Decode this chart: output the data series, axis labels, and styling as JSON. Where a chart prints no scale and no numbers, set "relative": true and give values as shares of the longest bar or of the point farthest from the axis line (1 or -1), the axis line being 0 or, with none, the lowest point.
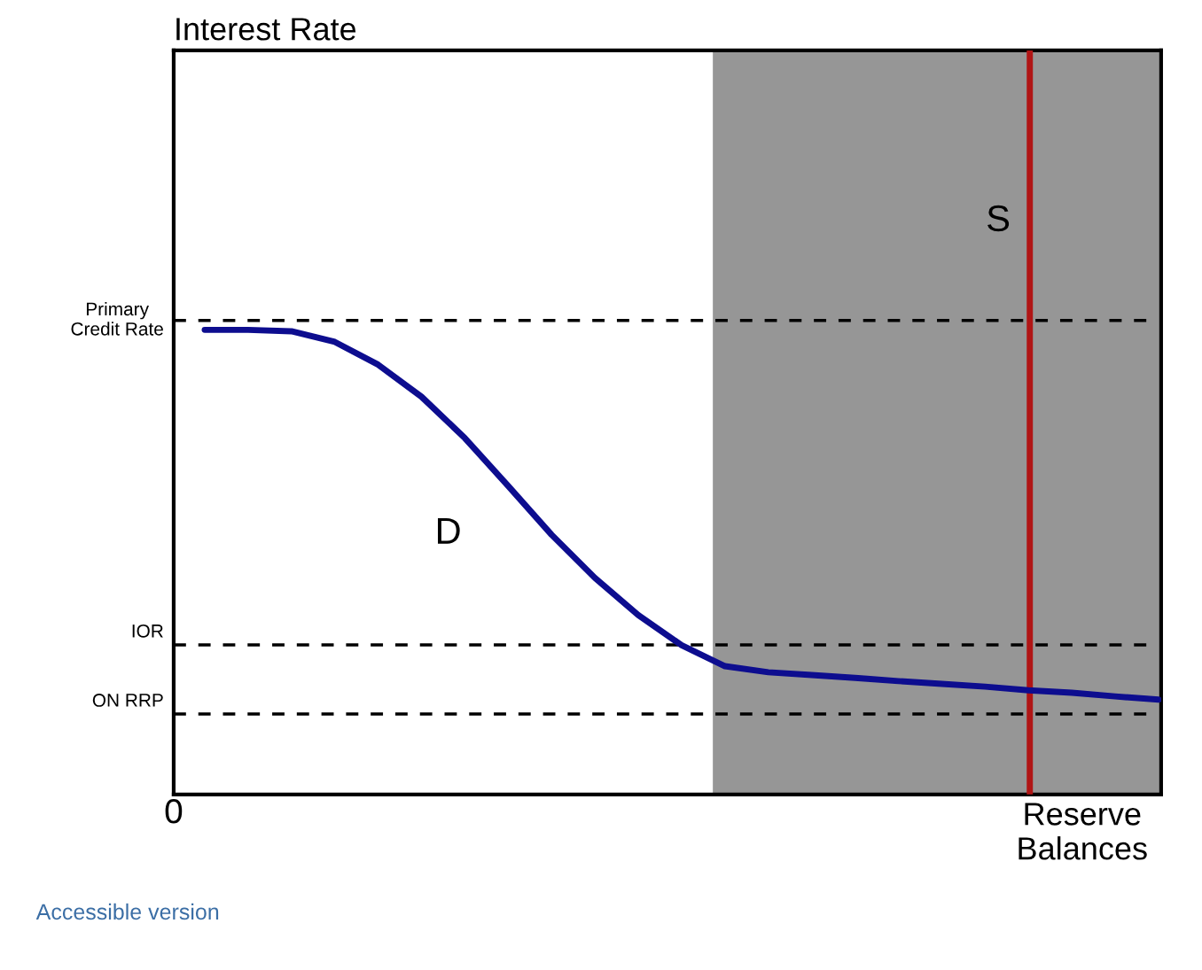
{
  "chart_data": {
    "type": "line",
    "relative": true,
    "xlabel": "Reserve\nBalances",
    "categories": [
      null,
      null,
      null,
      null,
      null,
      null,
      null,
      null,
      null,
      null,
      null,
      null,
      null,
      null,
      null,
      null,
      null,
      null,
      null,
      null,
      null,
      null,
      null
    ],
    "series": [
      {
        "color": "#0d0d8f",
        "values": [
          1.0,
          1.0,
          0.997,
          0.974,
          0.925,
          0.856,
          0.767,
          0.664,
          0.559,
          0.466,
          0.386,
          0.321,
          0.276,
          0.263,
          0.257,
          0.251,
          0.244,
          0.238,
          0.232,
          0.224,
          0.219,
          0.211,
          0.204
        ]
      }
    ],
    "ref_lines": [
      {
        "axis": "y",
        "value": 1.02,
        "label": "Primary\nCredit Rate",
        "color": "#000000",
        "line_style": "dashed"
      },
      {
        "axis": "y",
        "value": 0.322,
        "label": "IOR",
        "color": "#000000",
        "line_style": "dashed"
      },
      {
        "axis": "y",
        "value": 0.173,
        "label": "ON RRP",
        "color": "#000000",
        "line_style": "dashed"
      }
    ],
    "annotations": [
      "0",
      "S",
      "Interest Rate",
      "Accessible version",
      "D"
    ],
    "legend": false,
    "marker": "none",
    "line_style": "solid"
  }
}
